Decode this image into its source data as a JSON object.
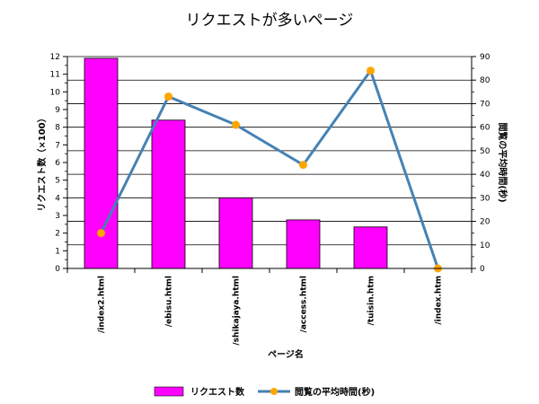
{
  "chart_data": {
    "type": "bar",
    "title": "リクエストが多いページ",
    "xlabel": "ページ名",
    "ylabel_left": "リクエスト数（×100）",
    "ylabel_right": "閲覧の平均時間(秒)",
    "categories": [
      "/index2.html",
      "/ebisu.html",
      "/shikajaya.html",
      "/access.html",
      "/tuisin.htm",
      "/index.htm"
    ],
    "series": [
      {
        "name": "リクエスト数",
        "kind": "bar",
        "axis": "left",
        "color": "#ff00ff",
        "values": [
          11.9,
          8.4,
          4.0,
          2.75,
          2.35,
          0
        ]
      },
      {
        "name": "閲覧の平均時間(秒)",
        "kind": "line",
        "axis": "right",
        "color": "#4682b4",
        "marker_color": "#ffa500",
        "values": [
          15,
          73,
          61,
          44,
          84,
          0
        ]
      }
    ],
    "ylim_left": [
      0,
      12
    ],
    "ylim_right": [
      0,
      90
    ],
    "yticks_left": [
      "0",
      "1",
      "2",
      "3",
      "4",
      "5",
      "6",
      "7",
      "8",
      "9",
      "10",
      "11",
      "12"
    ],
    "yticks_right": [
      "0",
      "10",
      "20",
      "30",
      "40",
      "50",
      "60",
      "70",
      "80",
      "90"
    ],
    "grid": true,
    "legend_position": "bottom"
  }
}
